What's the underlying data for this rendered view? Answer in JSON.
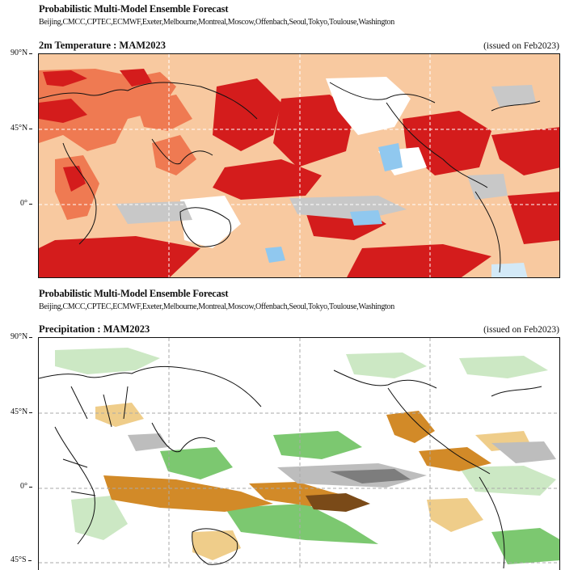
{
  "panels": [
    {
      "header_title": "Probabilistic Multi-Model Ensemble Forecast",
      "centres": "Beijing,CMCC,CPTEC,ECMWF,Exeter,Melbourne,Montreal,Moscow,Offenbach,Seoul,Tokyo,Toulouse,Washington",
      "map_title": "2m Temperature : MAM2023",
      "issued": "(issued on Feb2023)",
      "lat_labels": [
        "90°N",
        "45°N",
        "0°"
      ],
      "colors": {
        "strong_above": "#d41c1c",
        "above": "#ef7a52",
        "weak_above": "#f8c9a0",
        "neutral": "#ffffff",
        "near_normal": "#c8c8c8",
        "below": "#90c8ef",
        "weak_below": "#d3e9f7"
      }
    },
    {
      "header_title": "Probabilistic Multi-Model Ensemble Forecast",
      "centres": "Beijing,CMCC,CPTEC,ECMWF,Exeter,Melbourne,Montreal,Moscow,Offenbach,Seoul,Tokyo,Toulouse,Washington",
      "map_title": "Precipitation : MAM2023",
      "issued": "(issued on Feb2023)",
      "lat_labels": [
        "90°N",
        "45°N",
        "0°",
        "45°S"
      ],
      "colors": {
        "strong_below": "#7a4a18",
        "below": "#d28a28",
        "weak_below": "#efcd8a",
        "neutral": "#ffffff",
        "near_normal": "#bdbdbd",
        "strong_near_normal": "#7d7d7d",
        "above": "#7cc870",
        "weak_above": "#cce8c4"
      }
    }
  ]
}
